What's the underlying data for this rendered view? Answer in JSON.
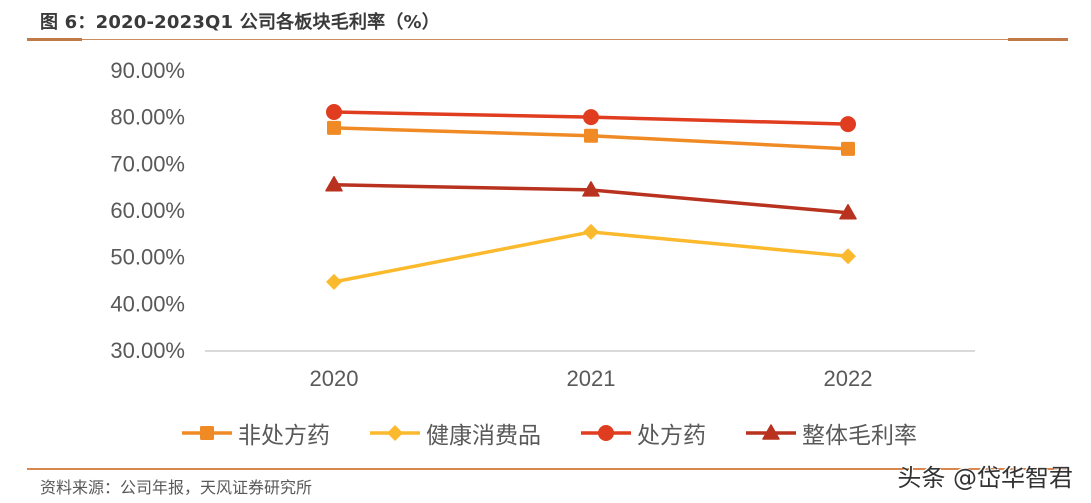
{
  "header": {
    "title": "图 6：2020-2023Q1 公司各板块毛利率（%）"
  },
  "footer": {
    "source": "资料来源：公司年报，天风证券研究所",
    "watermark": "头条 @岱华智君"
  },
  "colors": {
    "otc": "#f08a24",
    "health": "#fbb92e",
    "rx": "#e03c1f",
    "overall": "#b8321f",
    "axis": "#d9d9d9",
    "tick_text": "#595959",
    "rule": "#c98c5e"
  },
  "chart_data": {
    "type": "line",
    "title": "2020-2023Q1 公司各板块毛利率（%）",
    "xlabel": "",
    "ylabel": "",
    "categories": [
      "2020",
      "2021",
      "2022"
    ],
    "ylim": [
      30,
      90
    ],
    "yticks": [
      "90.00%",
      "80.00%",
      "70.00%",
      "60.00%",
      "50.00%",
      "40.00%",
      "30.00%"
    ],
    "grid": false,
    "legend_position": "bottom",
    "series": [
      {
        "name": "非处方药",
        "marker": "square",
        "color": "#f08a24",
        "values": [
          77.6,
          75.9,
          73.1
        ]
      },
      {
        "name": "健康消费品",
        "marker": "diamond",
        "color": "#fbb92e",
        "values": [
          44.6,
          55.3,
          50.1
        ]
      },
      {
        "name": "处方药",
        "marker": "circle",
        "color": "#e03c1f",
        "values": [
          81.0,
          79.9,
          78.4
        ]
      },
      {
        "name": "整体毛利率",
        "marker": "triangle",
        "color": "#b8321f",
        "values": [
          65.4,
          64.3,
          59.4
        ]
      }
    ]
  }
}
